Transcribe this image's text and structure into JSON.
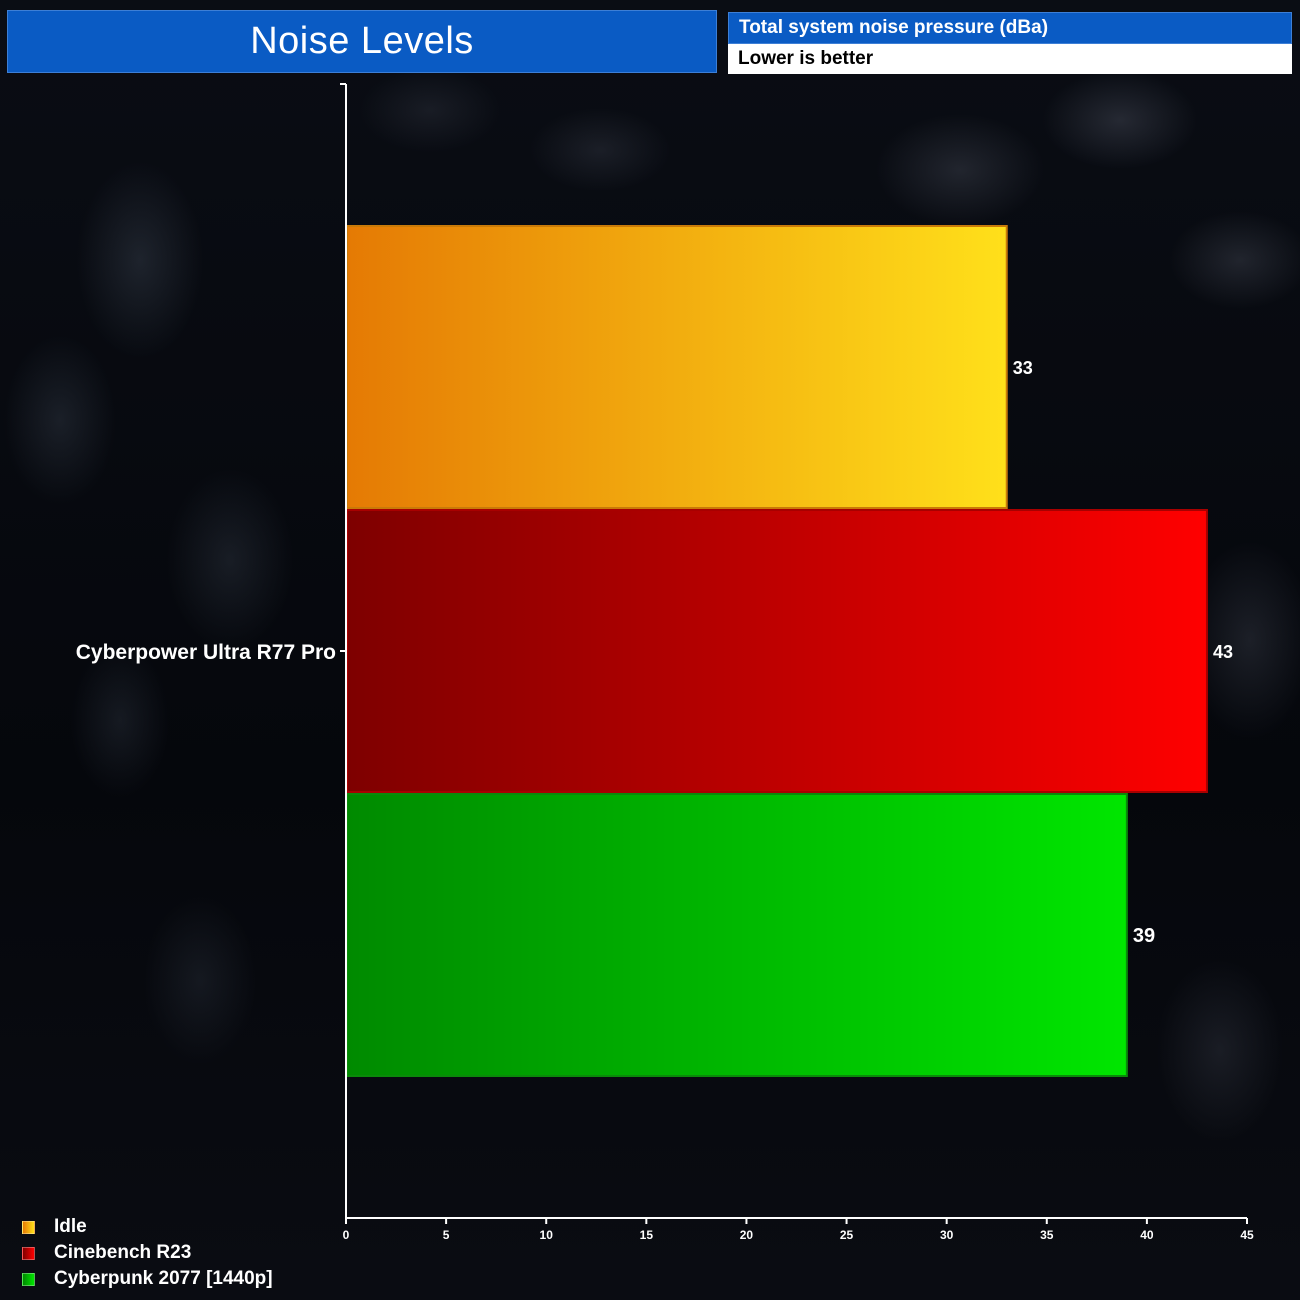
{
  "header": {
    "title": "Noise Levels",
    "metric": "Total system noise pressure (dBa)",
    "note": "Lower is better"
  },
  "chart_data": {
    "type": "bar",
    "orientation": "horizontal",
    "categories": [
      "Cyberpower Ultra R77 Pro"
    ],
    "series": [
      {
        "name": "Idle",
        "values": [
          33
        ],
        "color": "#f5a20c"
      },
      {
        "name": "Cinebench R23",
        "values": [
          43
        ],
        "color": "#d40000"
      },
      {
        "name": "Cyberpunk 2077 [1440p]",
        "values": [
          39
        ],
        "color": "#10b810"
      }
    ],
    "xlim": [
      0,
      45
    ],
    "xticks": [
      0,
      5,
      10,
      15,
      20,
      25,
      30,
      35,
      40,
      45
    ],
    "legend_position": "bottom-left",
    "grid": false
  },
  "colors": {
    "header_blue": "#0a5bc4",
    "idle_start": "#e57a04",
    "idle_end": "#ffe01a",
    "cine_start": "#7e0000",
    "cine_end": "#ff0000",
    "cyber_start": "#008a00",
    "cyber_end": "#00e600"
  }
}
